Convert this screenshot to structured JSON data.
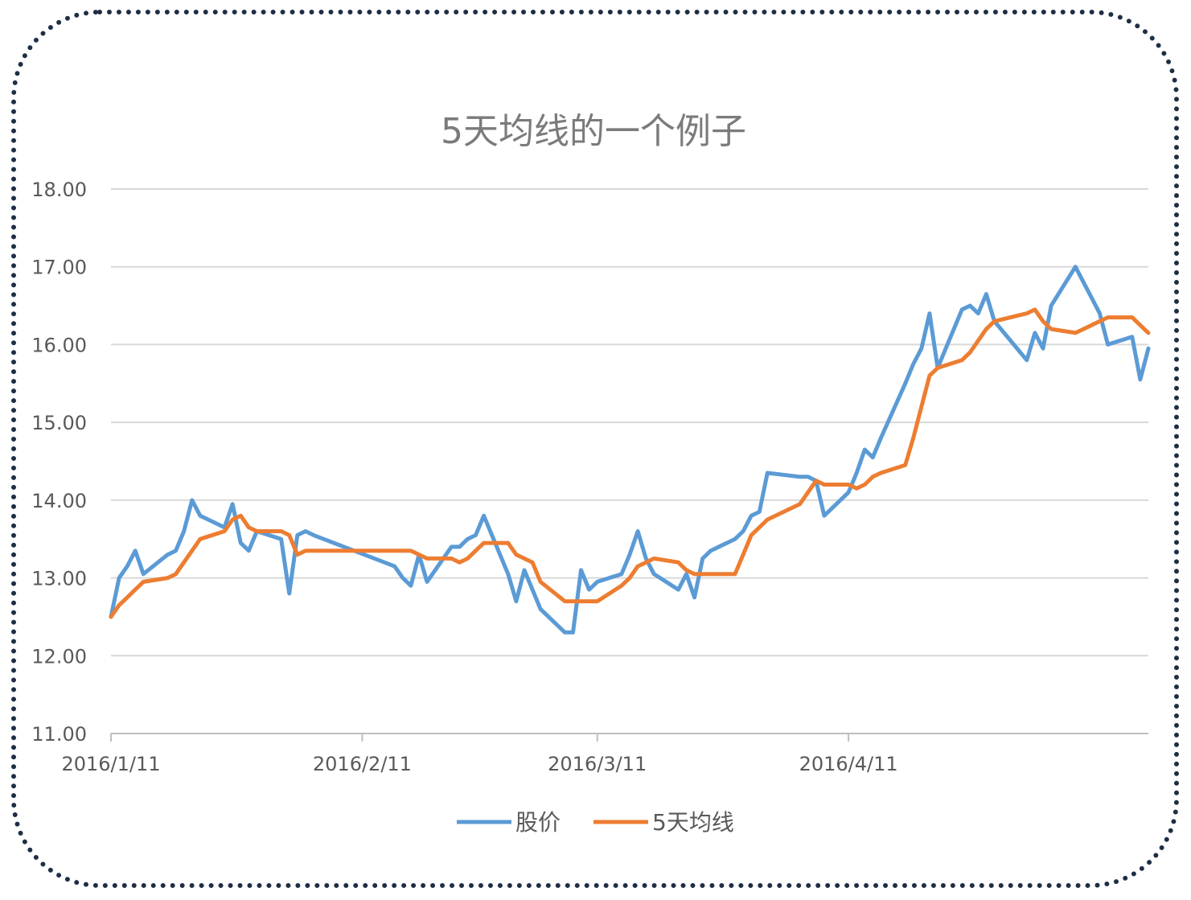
{
  "chart_data": {
    "type": "line",
    "title": "5天均线的一个例子",
    "x_start": "2016/1/11",
    "x_end": "2016/5/18",
    "x_tick_labels": [
      "2016/1/11",
      "2016/2/11",
      "2016/3/11",
      "2016/4/11"
    ],
    "y_tick_labels": [
      "11.00",
      "12.00",
      "13.00",
      "14.00",
      "15.00",
      "16.00",
      "17.00",
      "18.00"
    ],
    "ylim": [
      11,
      18
    ],
    "grid": true,
    "legend_position": "bottom",
    "series": [
      {
        "name": "股价",
        "color": "#5b9bd5",
        "points": [
          [
            "2016/1/11",
            12.5
          ],
          [
            "2016/1/12",
            13.0
          ],
          [
            "2016/1/13",
            13.15
          ],
          [
            "2016/1/14",
            13.35
          ],
          [
            "2016/1/15",
            13.05
          ],
          [
            "2016/1/18",
            13.3
          ],
          [
            "2016/1/19",
            13.35
          ],
          [
            "2016/1/20",
            13.6
          ],
          [
            "2016/1/21",
            14.0
          ],
          [
            "2016/1/22",
            13.8
          ],
          [
            "2016/1/25",
            13.65
          ],
          [
            "2016/1/26",
            13.95
          ],
          [
            "2016/1/27",
            13.45
          ],
          [
            "2016/1/28",
            13.35
          ],
          [
            "2016/1/29",
            13.6
          ],
          [
            "2016/2/1",
            13.5
          ],
          [
            "2016/2/2",
            12.8
          ],
          [
            "2016/2/3",
            13.55
          ],
          [
            "2016/2/4",
            13.6
          ],
          [
            "2016/2/5",
            13.55
          ],
          [
            "2016/2/15",
            13.15
          ],
          [
            "2016/2/16",
            13.0
          ],
          [
            "2016/2/17",
            12.9
          ],
          [
            "2016/2/18",
            13.3
          ],
          [
            "2016/2/19",
            12.95
          ],
          [
            "2016/2/22",
            13.4
          ],
          [
            "2016/2/23",
            13.4
          ],
          [
            "2016/2/24",
            13.5
          ],
          [
            "2016/2/25",
            13.55
          ],
          [
            "2016/2/26",
            13.8
          ],
          [
            "2016/2/29",
            13.05
          ],
          [
            "2016/3/1",
            12.7
          ],
          [
            "2016/3/2",
            13.1
          ],
          [
            "2016/3/3",
            12.85
          ],
          [
            "2016/3/4",
            12.6
          ],
          [
            "2016/3/7",
            12.3
          ],
          [
            "2016/3/8",
            12.3
          ],
          [
            "2016/3/9",
            13.1
          ],
          [
            "2016/3/10",
            12.85
          ],
          [
            "2016/3/11",
            12.95
          ],
          [
            "2016/3/14",
            13.05
          ],
          [
            "2016/3/15",
            13.3
          ],
          [
            "2016/3/16",
            13.6
          ],
          [
            "2016/3/17",
            13.25
          ],
          [
            "2016/3/18",
            13.05
          ],
          [
            "2016/3/21",
            12.85
          ],
          [
            "2016/3/22",
            13.05
          ],
          [
            "2016/3/23",
            12.75
          ],
          [
            "2016/3/24",
            13.25
          ],
          [
            "2016/3/25",
            13.35
          ],
          [
            "2016/3/28",
            13.5
          ],
          [
            "2016/3/29",
            13.6
          ],
          [
            "2016/3/30",
            13.8
          ],
          [
            "2016/3/31",
            13.85
          ],
          [
            "2016/4/1",
            14.35
          ],
          [
            "2016/4/5",
            14.3
          ],
          [
            "2016/4/6",
            14.3
          ],
          [
            "2016/4/7",
            14.25
          ],
          [
            "2016/4/8",
            13.8
          ],
          [
            "2016/4/11",
            14.1
          ],
          [
            "2016/4/12",
            14.35
          ],
          [
            "2016/4/13",
            14.65
          ],
          [
            "2016/4/14",
            14.55
          ],
          [
            "2016/4/15",
            14.8
          ],
          [
            "2016/4/18",
            15.5
          ],
          [
            "2016/4/19",
            15.75
          ],
          [
            "2016/4/20",
            15.95
          ],
          [
            "2016/4/21",
            16.4
          ],
          [
            "2016/4/22",
            15.7
          ],
          [
            "2016/4/25",
            16.45
          ],
          [
            "2016/4/26",
            16.5
          ],
          [
            "2016/4/27",
            16.4
          ],
          [
            "2016/4/28",
            16.65
          ],
          [
            "2016/4/29",
            16.3
          ],
          [
            "2016/5/3",
            15.8
          ],
          [
            "2016/5/4",
            16.15
          ],
          [
            "2016/5/5",
            15.95
          ],
          [
            "2016/5/6",
            16.5
          ],
          [
            "2016/5/9",
            17.0
          ],
          [
            "2016/5/10",
            16.8
          ],
          [
            "2016/5/11",
            16.6
          ],
          [
            "2016/5/12",
            16.4
          ],
          [
            "2016/5/13",
            16.0
          ],
          [
            "2016/5/16",
            16.1
          ],
          [
            "2016/5/17",
            15.55
          ],
          [
            "2016/5/18",
            15.95
          ]
        ]
      },
      {
        "name": "5天均线",
        "color": "#ed7d31",
        "points": [
          [
            "2016/1/11",
            12.5
          ],
          [
            "2016/1/12",
            12.65
          ],
          [
            "2016/1/13",
            12.75
          ],
          [
            "2016/1/14",
            12.85
          ],
          [
            "2016/1/15",
            12.95
          ],
          [
            "2016/1/18",
            13.0
          ],
          [
            "2016/1/19",
            13.05
          ],
          [
            "2016/1/20",
            13.2
          ],
          [
            "2016/1/21",
            13.35
          ],
          [
            "2016/1/22",
            13.5
          ],
          [
            "2016/1/25",
            13.6
          ],
          [
            "2016/1/26",
            13.75
          ],
          [
            "2016/1/27",
            13.8
          ],
          [
            "2016/1/28",
            13.65
          ],
          [
            "2016/1/29",
            13.6
          ],
          [
            "2016/2/1",
            13.6
          ],
          [
            "2016/2/2",
            13.55
          ],
          [
            "2016/2/3",
            13.3
          ],
          [
            "2016/2/4",
            13.35
          ],
          [
            "2016/2/5",
            13.35
          ],
          [
            "2016/2/15",
            13.35
          ],
          [
            "2016/2/16",
            13.35
          ],
          [
            "2016/2/17",
            13.35
          ],
          [
            "2016/2/18",
            13.3
          ],
          [
            "2016/2/19",
            13.25
          ],
          [
            "2016/2/22",
            13.25
          ],
          [
            "2016/2/23",
            13.2
          ],
          [
            "2016/2/24",
            13.25
          ],
          [
            "2016/2/25",
            13.35
          ],
          [
            "2016/2/26",
            13.45
          ],
          [
            "2016/2/29",
            13.45
          ],
          [
            "2016/3/1",
            13.3
          ],
          [
            "2016/3/2",
            13.25
          ],
          [
            "2016/3/3",
            13.2
          ],
          [
            "2016/3/4",
            12.95
          ],
          [
            "2016/3/7",
            12.7
          ],
          [
            "2016/3/8",
            12.7
          ],
          [
            "2016/3/9",
            12.7
          ],
          [
            "2016/3/10",
            12.7
          ],
          [
            "2016/3/11",
            12.7
          ],
          [
            "2016/3/14",
            12.9
          ],
          [
            "2016/3/15",
            13.0
          ],
          [
            "2016/3/16",
            13.15
          ],
          [
            "2016/3/17",
            13.2
          ],
          [
            "2016/3/18",
            13.25
          ],
          [
            "2016/3/21",
            13.2
          ],
          [
            "2016/3/22",
            13.1
          ],
          [
            "2016/3/23",
            13.05
          ],
          [
            "2016/3/24",
            13.05
          ],
          [
            "2016/3/25",
            13.05
          ],
          [
            "2016/3/28",
            13.05
          ],
          [
            "2016/3/29",
            13.3
          ],
          [
            "2016/3/30",
            13.55
          ],
          [
            "2016/3/31",
            13.65
          ],
          [
            "2016/4/1",
            13.75
          ],
          [
            "2016/4/5",
            13.95
          ],
          [
            "2016/4/6",
            14.1
          ],
          [
            "2016/4/7",
            14.25
          ],
          [
            "2016/4/8",
            14.2
          ],
          [
            "2016/4/11",
            14.2
          ],
          [
            "2016/4/12",
            14.15
          ],
          [
            "2016/4/13",
            14.2
          ],
          [
            "2016/4/14",
            14.3
          ],
          [
            "2016/4/15",
            14.35
          ],
          [
            "2016/4/18",
            14.45
          ],
          [
            "2016/4/19",
            14.8
          ],
          [
            "2016/4/20",
            15.2
          ],
          [
            "2016/4/21",
            15.6
          ],
          [
            "2016/4/22",
            15.7
          ],
          [
            "2016/4/25",
            15.8
          ],
          [
            "2016/4/26",
            15.9
          ],
          [
            "2016/4/27",
            16.05
          ],
          [
            "2016/4/28",
            16.2
          ],
          [
            "2016/4/29",
            16.3
          ],
          [
            "2016/5/3",
            16.4
          ],
          [
            "2016/5/4",
            16.45
          ],
          [
            "2016/5/5",
            16.3
          ],
          [
            "2016/5/6",
            16.2
          ],
          [
            "2016/5/9",
            16.15
          ],
          [
            "2016/5/10",
            16.2
          ],
          [
            "2016/5/11",
            16.25
          ],
          [
            "2016/5/12",
            16.3
          ],
          [
            "2016/5/13",
            16.35
          ],
          [
            "2016/5/16",
            16.35
          ],
          [
            "2016/5/17",
            16.25
          ],
          [
            "2016/5/18",
            16.15
          ]
        ]
      }
    ]
  }
}
